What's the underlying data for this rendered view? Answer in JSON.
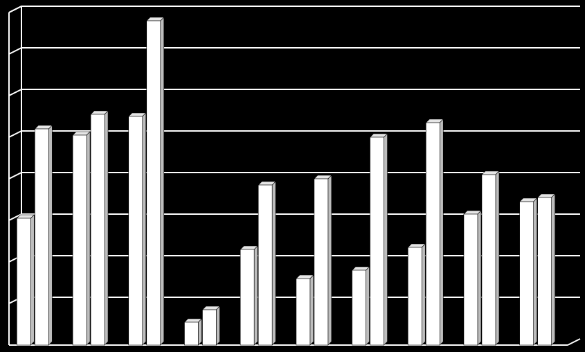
{
  "chart_data": {
    "type": "bar",
    "style": "3d-clustered-column",
    "categories": [
      "",
      "",
      "",
      "",
      "",
      "",
      "",
      "",
      "",
      ""
    ],
    "series": [
      {
        "values": [
          3.05,
          5.05,
          5.5,
          0.55,
          2.3,
          1.6,
          1.8,
          2.35,
          3.15,
          3.45
        ]
      },
      {
        "values": [
          5.2,
          5.55,
          7.8,
          0.85,
          3.85,
          4.0,
          5.0,
          5.35,
          4.1,
          3.55
        ]
      }
    ],
    "ylim": [
      0,
      8
    ],
    "grid": true,
    "legend": "none",
    "title": "",
    "xlabel": "",
    "ylabel": "",
    "colors": {
      "background": "#000000",
      "bar_front": "#ffffff",
      "bar_top": "#e6e6e6",
      "bar_side": "#bdbdbd",
      "grid": "#ffffff",
      "axis": "#ffffff"
    }
  }
}
